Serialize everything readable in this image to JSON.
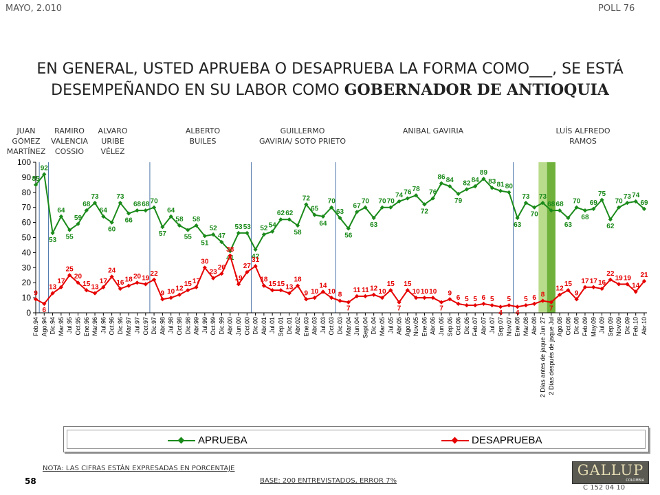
{
  "header": {
    "date": "MAYO, 2.010",
    "poll": "POLL 76"
  },
  "title": {
    "line1": "EN GENERAL, USTED APRUEBA O DESAPRUEBA LA FORMA COMO___, SE ESTÁ",
    "line2_prefix": "DESEMPEÑANDO EN SU LABOR COMO ",
    "line2_bold": "GOBERNADOR DE ANTIOQUIA"
  },
  "periods": [
    {
      "id": "juan",
      "label": "JUAN\nGÓMEZ\nMARTÍNEZ"
    },
    {
      "id": "ramiro",
      "label": "RAMIRO\nVALENCIA\nCOSSIO"
    },
    {
      "id": "alvaro",
      "label": "ALVARO\nURIBE\nVÉLEZ"
    },
    {
      "id": "alberto",
      "label": "ALBERTO\nBUILES"
    },
    {
      "id": "guillermo",
      "label": "GUILLERMO\nGAVIRIA/ SOTO PRIETO"
    },
    {
      "id": "anibal",
      "label": "ANIBAL GAVIRIA"
    },
    {
      "id": "luis",
      "label": "LUÍS ALFREDO\nRAMOS"
    }
  ],
  "chart_data": {
    "type": "line",
    "categories": [
      "Feb.94",
      "Ago.94",
      "Dic.94",
      "Mar.95",
      "Jul.95",
      "Oct.95",
      "Ene.96",
      "Mar.96",
      "Jul.96",
      "Oct.96",
      "Dic.96",
      "Mar.97",
      "Jul.97",
      "Oct.97",
      "Dic.97",
      "Abr.98",
      "Jul.98",
      "Oct.98",
      "Dic.98",
      "Abr.99",
      "Jul.99",
      "Oct.99",
      "Dic.99",
      "Abr.00",
      "Jun.00",
      "Oct.00",
      "Dic.00",
      "Abr.01",
      "Jul.01",
      "Sep.01",
      "Dic.01",
      "Abr.02",
      "Ene.03",
      "Abr.03",
      "Jul.03",
      "Oct.03",
      "Dic.03",
      "Mar.04",
      "Jun.04",
      "Sept.04",
      "Dic.04",
      "Mar.05",
      "Jul.05",
      "Abr.05",
      "Ago.05",
      "Nov.05",
      "Ene.06",
      "Abr.06",
      "Jun.06",
      "Sep.06",
      "Oct.06",
      "Dic.06",
      "Feb.07",
      "Abr.07",
      "Jul.07",
      "Sep.07",
      "Nov.07",
      "Ene.08",
      "Mar.08",
      "Abr.08",
      "2 Días antes de jaque Jun 27",
      "2 Días después de jaque Jul",
      "Ago.08",
      "Oct.08",
      "Dic.08",
      "Feb.09",
      "May.09",
      "Jul.09",
      "Sep.09",
      "Nov.09",
      "Dic.09",
      "Feb.10",
      "Abr.10"
    ],
    "series": [
      {
        "name": "APRUEBA",
        "color": "#1a8a1a",
        "values": [
          85,
          92,
          53,
          64,
          55,
          59,
          68,
          73,
          64,
          60,
          73,
          66,
          68,
          68,
          70,
          57,
          64,
          58,
          55,
          58,
          51,
          52,
          47,
          41,
          53,
          53,
          42,
          52,
          54,
          62,
          62,
          58,
          72,
          65,
          64,
          70,
          63,
          56,
          67,
          70,
          63,
          70,
          70,
          74,
          76,
          78,
          72,
          76,
          86,
          84,
          79,
          82,
          84,
          89,
          83,
          81,
          80,
          63,
          73,
          70,
          73,
          68,
          68,
          63,
          70,
          68,
          69,
          75,
          62,
          70,
          73,
          74,
          69
        ]
      },
      {
        "name": "DESAPRUEBA",
        "color": "#e60000",
        "values": [
          9,
          6,
          13,
          17,
          25,
          20,
          15,
          13,
          17,
          24,
          16,
          18,
          20,
          19,
          22,
          9,
          10,
          12,
          15,
          17,
          30,
          23,
          26,
          38,
          19,
          27,
          31,
          18,
          15,
          15,
          13,
          18,
          9,
          10,
          14,
          10,
          8,
          7,
          11,
          11,
          12,
          10,
          15,
          7,
          15,
          10,
          10,
          10,
          7,
          9,
          6,
          5,
          5,
          6,
          5,
          4,
          5,
          4,
          5,
          6,
          8,
          7,
          12,
          15,
          9,
          17,
          17,
          16,
          22,
          19,
          19,
          14,
          21
        ]
      }
    ],
    "ylim": [
      0,
      100
    ],
    "yticks": [
      0,
      10,
      20,
      30,
      40,
      50,
      60,
      70,
      80,
      90,
      100
    ],
    "grid": false,
    "legend": "bottom"
  },
  "legend": {
    "aprueba": "APRUEBA",
    "desaprueba": "DESAPRUEBA"
  },
  "footer": {
    "note": "NOTA: LAS CIFRAS ESTÁN EXPRESADAS EN PORCENTAJE",
    "base": "BASE: 200 ENTREVISTADOS, ERROR 7%",
    "page": "58",
    "logo": "GALLUP",
    "logo_sub": "COLOMBIA",
    "code": "C 152 04 10"
  }
}
